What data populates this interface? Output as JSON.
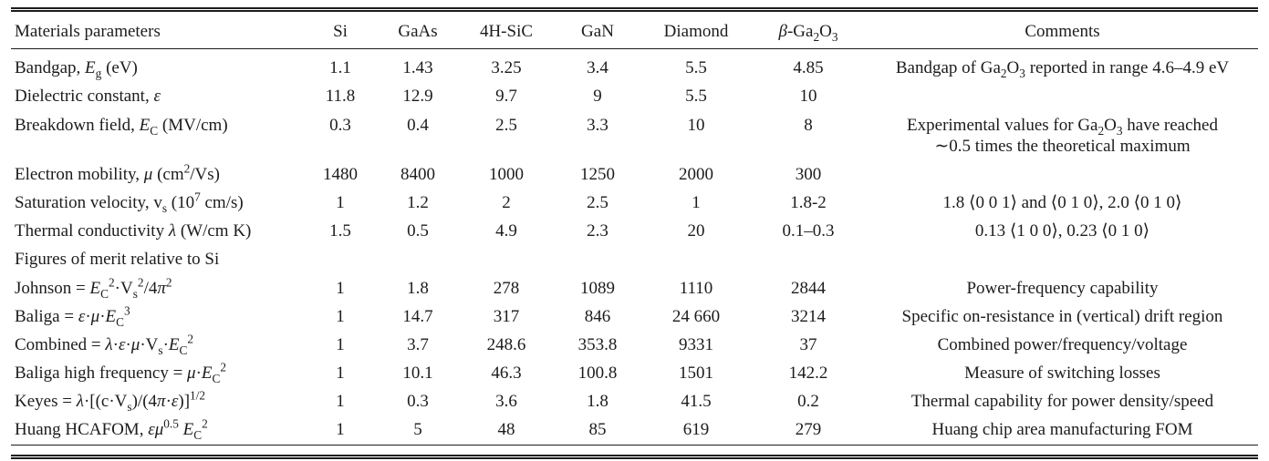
{
  "table": {
    "columns": [
      {
        "key": "materials-parameters",
        "label": "Materials parameters"
      },
      {
        "key": "si",
        "label": "Si"
      },
      {
        "key": "gaas",
        "label": "GaAs"
      },
      {
        "key": "4h-sic",
        "label": "4H-SiC"
      },
      {
        "key": "gan",
        "label": "GaN"
      },
      {
        "key": "diamond",
        "label": "Diamond"
      },
      {
        "key": "beta-ga2o3",
        "label": "<i>β</i>-Ga<sub>2</sub>O<sub>3</sub>"
      },
      {
        "key": "comments",
        "label": "Comments"
      }
    ],
    "rows": [
      {
        "label": "Bandgap, <i>E</i><sub>g</sub> (eV)",
        "values": [
          "1.1",
          "1.43",
          "3.25",
          "3.4",
          "5.5",
          "4.85"
        ],
        "comment": "Bandgap of Ga<sub>2</sub>O<sub>3</sub> reported in range 4.6–4.9 eV"
      },
      {
        "label": "Dielectric constant, <i>ε</i>",
        "values": [
          "11.8",
          "12.9",
          "9.7",
          "9",
          "5.5",
          "10"
        ],
        "comment": ""
      },
      {
        "label": "Breakdown field, <i>E</i><sub>C</sub> (MV/cm)",
        "values": [
          "0.3",
          "0.4",
          "2.5",
          "3.3",
          "10",
          "8"
        ],
        "comment": "Experimental values for Ga<sub>2</sub>O<sub>3</sub> have reached<br>∼0.5 times the theoretical maximum"
      },
      {
        "label": "Electron mobility, <i>μ</i> (cm<sup>2</sup>/Vs)",
        "values": [
          "1480",
          "8400",
          "1000",
          "1250",
          "2000",
          "300"
        ],
        "comment": ""
      },
      {
        "label": "Saturation velocity, v<sub>s</sub> (10<sup>7</sup> cm/s)",
        "values": [
          "1",
          "1.2",
          "2",
          "2.5",
          "1",
          "1.8-2"
        ],
        "comment": "1.8 ⟨0 0 1⟩ and ⟨0 1 0⟩, 2.0 ⟨0 1 0⟩"
      },
      {
        "label": "Thermal conductivity <i>λ</i> (W/cm K)",
        "values": [
          "1.5",
          "0.5",
          "4.9",
          "2.3",
          "20",
          "0.1–0.3"
        ],
        "comment": "0.13 ⟨1 0 0⟩, 0.23 ⟨0 1 0⟩"
      },
      {
        "label": "Figures of merit relative to Si",
        "section": true,
        "values": [],
        "comment": ""
      },
      {
        "label": "Johnson = <i>E</i><sub>C</sub><sup>2</sup>·V<sub>s</sub><sup>2</sup>/4<i>π</i><sup>2</sup>",
        "values": [
          "1",
          "1.8",
          "278",
          "1089",
          "1110",
          "2844"
        ],
        "comment": "Power-frequency capability"
      },
      {
        "label": "Baliga = <i>ε</i>·<i>μ</i>·<i>E</i><sub>C</sub><sup>3</sup>",
        "values": [
          "1",
          "14.7",
          "317",
          "846",
          "24 660",
          "3214"
        ],
        "comment": "Specific on-resistance in (vertical) drift region"
      },
      {
        "label": "Combined = <i>λ</i>·<i>ε</i>·<i>μ</i>·V<sub>s</sub>·<i>E</i><sub>C</sub><sup>2</sup>",
        "values": [
          "1",
          "3.7",
          "248.6",
          "353.8",
          "9331",
          "37"
        ],
        "comment": "Combined power/frequency/voltage"
      },
      {
        "label": "Baliga high frequency = <i>μ</i>·<i>E</i><sub>C</sub><sup>2</sup>",
        "values": [
          "1",
          "10.1",
          "46.3",
          "100.8",
          "1501",
          "142.2"
        ],
        "comment": "Measure of switching losses"
      },
      {
        "label": "Keyes = <i>λ</i>·[(c·V<sub>s</sub>)/(4<i>π</i>·<i>ε</i>)]<sup>1/2</sup>",
        "values": [
          "1",
          "0.3",
          "3.6",
          "1.8",
          "41.5",
          "0.2"
        ],
        "comment": "Thermal capability for power density/speed"
      },
      {
        "label": "Huang HCAFOM, <i>εμ</i><sup>0.5</sup> <i>E</i><sub>C</sub><sup>2</sup>",
        "values": [
          "1",
          "5",
          "48",
          "85",
          "619",
          "279"
        ],
        "comment": "Huang chip area manufacturing FOM"
      }
    ]
  }
}
